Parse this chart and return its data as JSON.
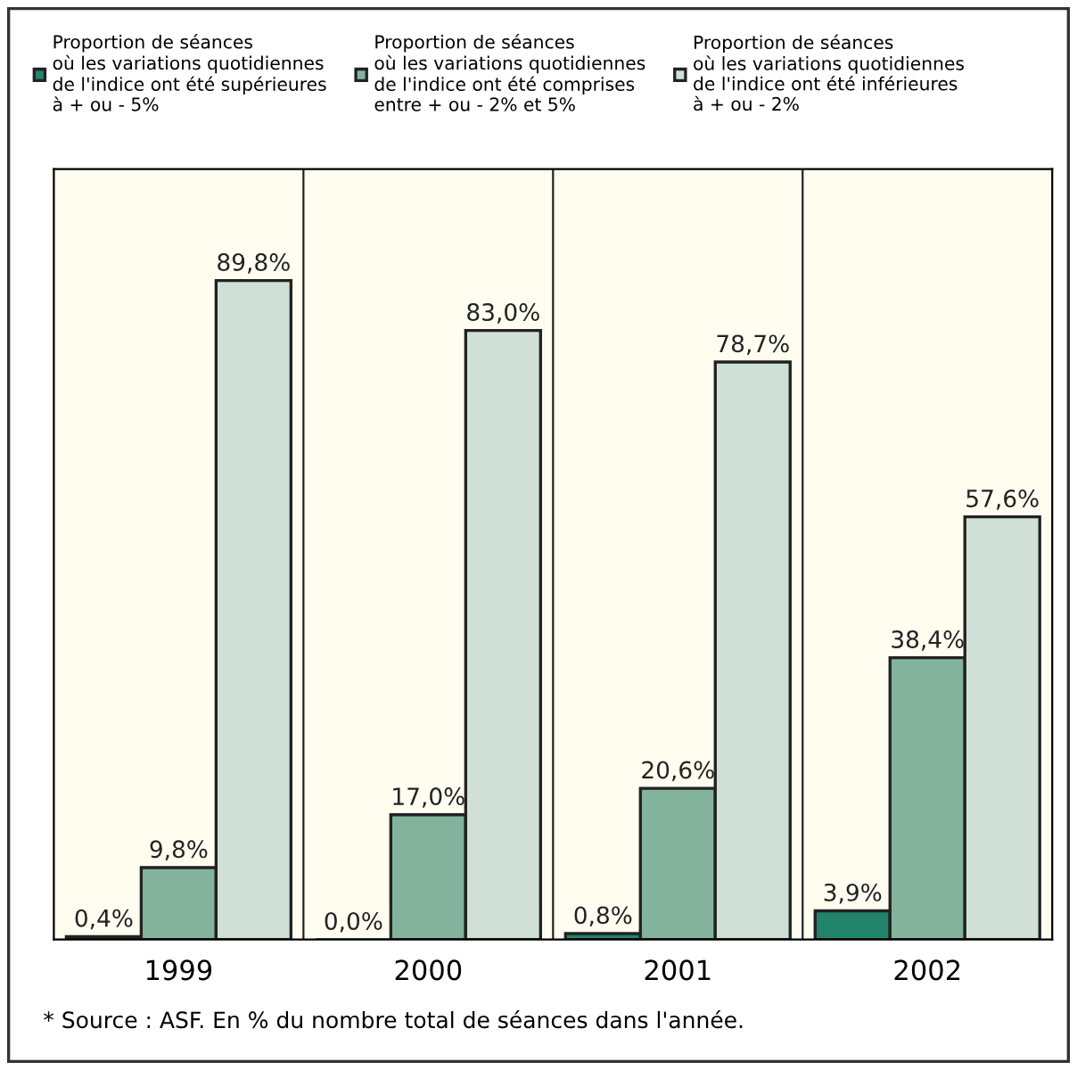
{
  "chart_data": {
    "type": "bar",
    "categories": [
      "1999",
      "2000",
      "2001",
      "2002"
    ],
    "series": [
      {
        "name": "Proportion de séances\noù les variations quotidiennes\nde l'indice ont été supérieures\nà + ou - 5%",
        "color": "#22846a",
        "values": [
          0.4,
          0.0,
          0.8,
          3.9
        ],
        "value_labels": [
          "0,4%",
          "0,0%",
          "0,8%",
          "3,9%"
        ]
      },
      {
        "name": "Proportion de séances\noù les variations quotidiennes\nde l'indice ont été comprises\nentre + ou - 2% et 5%",
        "color": "#84b39d",
        "values": [
          9.8,
          17.0,
          20.6,
          38.4
        ],
        "value_labels": [
          "9,8%",
          "17,0%",
          "20,6%",
          "38,4%"
        ]
      },
      {
        "name": "Proportion de séances\noù les variations quotidiennes\nde l'indice ont été inférieures\nà + ou - 2%",
        "color": "#d0e0d6",
        "values": [
          89.8,
          83.0,
          78.7,
          57.6
        ],
        "value_labels": [
          "89,8%",
          "83,0%",
          "78,7%",
          "57,6%"
        ]
      }
    ],
    "ylim": [
      0,
      105
    ],
    "tick_labels": "x",
    "grid": false,
    "legend": "top",
    "annotations": [
      "* Source : ASF. En % du nombre total de séances dans l'année."
    ]
  }
}
